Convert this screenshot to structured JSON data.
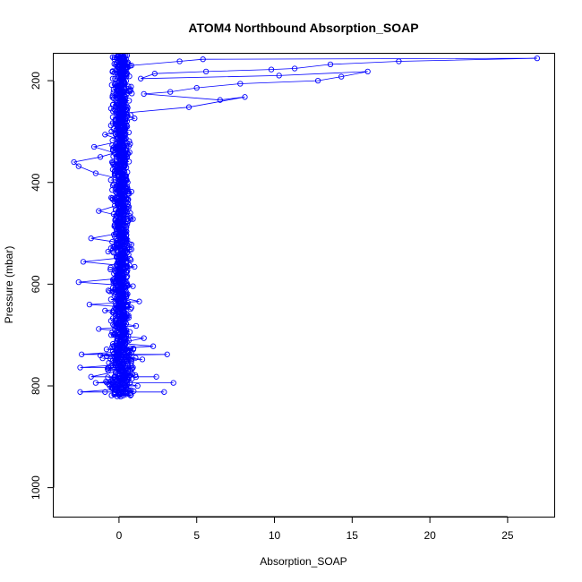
{
  "chart_data": {
    "type": "scatter",
    "title": "ATOM4 Northbound Absorption_SOAP",
    "xlabel": "Absorption_SOAP",
    "ylabel": "Pressure (mbar)",
    "xlim": [
      -4.2,
      28
    ],
    "ylim": [
      1057,
      147
    ],
    "x_ticks": [
      0,
      5,
      10,
      15,
      20,
      25
    ],
    "y_ticks": [
      200,
      400,
      600,
      800,
      1000
    ],
    "y_inverted": true,
    "grid": false,
    "legend": "none",
    "marker": "open-circle",
    "connected": true,
    "color": "#0000ff",
    "series": [
      {
        "points": [
          [
            0.0,
            818
          ],
          [
            0.4,
            812
          ],
          [
            -0.9,
            812
          ],
          [
            2.9,
            812
          ],
          [
            -2.5,
            812
          ],
          [
            0.1,
            806
          ],
          [
            -0.6,
            800
          ],
          [
            1.2,
            800
          ],
          [
            0.2,
            794
          ],
          [
            3.5,
            794
          ],
          [
            -1.5,
            794
          ],
          [
            0.6,
            788
          ],
          [
            -0.3,
            782
          ],
          [
            2.4,
            782
          ],
          [
            -1.8,
            782
          ],
          [
            0.1,
            770
          ],
          [
            0.9,
            764
          ],
          [
            -0.7,
            764
          ],
          [
            -2.5,
            764
          ],
          [
            0.3,
            758
          ],
          [
            -0.4,
            750
          ],
          [
            1.5,
            748
          ],
          [
            -1.2,
            740
          ],
          [
            3.1,
            738
          ],
          [
            -2.4,
            738
          ],
          [
            0.6,
            732
          ],
          [
            -0.8,
            728
          ],
          [
            2.2,
            722
          ],
          [
            0.0,
            716
          ],
          [
            1.6,
            706
          ],
          [
            -0.5,
            700
          ],
          [
            0.7,
            694
          ],
          [
            -1.3,
            688
          ],
          [
            1.1,
            682
          ],
          [
            -0.2,
            676
          ],
          [
            0.4,
            664
          ],
          [
            -0.9,
            652
          ],
          [
            0.8,
            646
          ],
          [
            -1.9,
            640
          ],
          [
            1.3,
            634
          ],
          [
            0.1,
            626
          ],
          [
            -0.6,
            614
          ],
          [
            0.9,
            604
          ],
          [
            -2.6,
            596
          ],
          [
            0.3,
            588
          ],
          [
            -0.2,
            576
          ],
          [
            1.0,
            566
          ],
          [
            -2.3,
            556
          ],
          [
            0.2,
            548
          ],
          [
            -0.7,
            536
          ],
          [
            0.8,
            522
          ],
          [
            -1.8,
            510
          ],
          [
            0.4,
            498
          ],
          [
            -0.3,
            486
          ],
          [
            0.9,
            472
          ],
          [
            -1.3,
            456
          ],
          [
            0.2,
            442
          ],
          [
            -0.5,
            430
          ],
          [
            0.8,
            418
          ],
          [
            -0.4,
            406
          ],
          [
            0.5,
            396
          ],
          [
            -1.5,
            382
          ],
          [
            -2.6,
            368
          ],
          [
            -2.9,
            360
          ],
          [
            -1.2,
            350
          ],
          [
            -0.3,
            342
          ],
          [
            -1.6,
            330
          ],
          [
            0.2,
            318
          ],
          [
            -0.9,
            306
          ],
          [
            0.4,
            296
          ],
          [
            -0.2,
            286
          ],
          [
            1.0,
            274
          ],
          [
            0.2,
            264
          ],
          [
            4.5,
            252
          ],
          [
            8.1,
            232
          ],
          [
            6.5,
            238
          ],
          [
            1.6,
            226
          ],
          [
            3.3,
            222
          ],
          [
            5.0,
            214
          ],
          [
            7.8,
            206
          ],
          [
            12.8,
            200
          ],
          [
            14.3,
            192
          ],
          [
            16.0,
            182
          ],
          [
            10.3,
            190
          ],
          [
            1.4,
            196
          ],
          [
            2.3,
            186
          ],
          [
            5.6,
            182
          ],
          [
            9.8,
            178
          ],
          [
            11.3,
            176
          ],
          [
            13.6,
            168
          ],
          [
            18.0,
            162
          ],
          [
            26.9,
            156
          ],
          [
            5.4,
            158
          ],
          [
            3.9,
            162
          ],
          [
            0.8,
            170
          ],
          [
            0.2,
            178
          ],
          [
            0.5,
            166
          ],
          [
            -0.3,
            158
          ],
          [
            0.3,
            154
          ],
          [
            -0.1,
            152
          ]
        ]
      }
    ],
    "dense_core": {
      "x_center": 0.15,
      "x_spread": 0.55,
      "pressure_range": [
        150,
        820
      ]
    }
  }
}
